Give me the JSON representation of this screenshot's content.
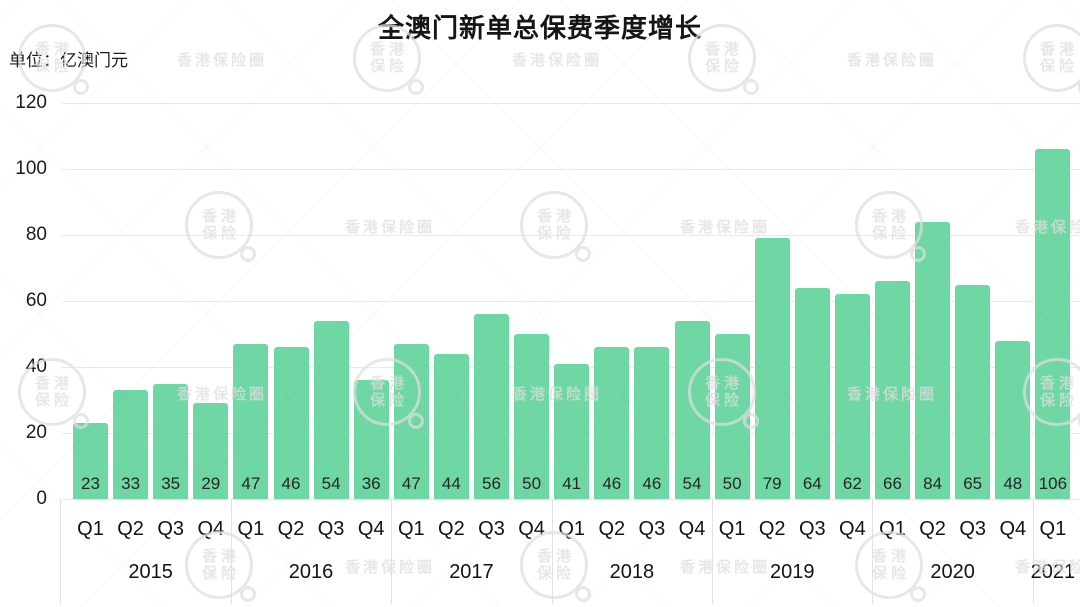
{
  "header": {
    "title": "全澳门新单总保费季度增长",
    "unit_label": "单位：亿澳门元"
  },
  "watermark": {
    "badge_line1": "香港",
    "badge_line2": "保险",
    "text": "香港保险圈"
  },
  "chart_data": {
    "type": "bar",
    "title": "全澳门新单总保费季度增长",
    "ylabel": "单位：亿澳门元",
    "xlabel": "",
    "y_ticks": [
      0,
      20,
      40,
      60,
      80,
      100,
      120
    ],
    "ylim": [
      0,
      120
    ],
    "grid": true,
    "legend_position": "none",
    "value_labels": "inside-bottom",
    "bar_color": "#6ed7a4",
    "groups": [
      {
        "year": "2015",
        "quarters": [
          "Q1",
          "Q2",
          "Q3",
          "Q4"
        ],
        "values": [
          23,
          33,
          35,
          29
        ]
      },
      {
        "year": "2016",
        "quarters": [
          "Q1",
          "Q2",
          "Q3",
          "Q4"
        ],
        "values": [
          47,
          46,
          54,
          36
        ]
      },
      {
        "year": "2017",
        "quarters": [
          "Q1",
          "Q2",
          "Q3",
          "Q4"
        ],
        "values": [
          47,
          44,
          56,
          50
        ]
      },
      {
        "year": "2018",
        "quarters": [
          "Q1",
          "Q2",
          "Q3",
          "Q4"
        ],
        "values": [
          41,
          46,
          46,
          54
        ]
      },
      {
        "year": "2019",
        "quarters": [
          "Q1",
          "Q2",
          "Q3",
          "Q4"
        ],
        "values": [
          50,
          79,
          64,
          62
        ]
      },
      {
        "year": "2020",
        "quarters": [
          "Q1",
          "Q2",
          "Q3",
          "Q4"
        ],
        "values": [
          66,
          84,
          65,
          48
        ]
      },
      {
        "year": "2021",
        "quarters": [
          "Q1"
        ],
        "values": [
          106
        ]
      }
    ]
  }
}
